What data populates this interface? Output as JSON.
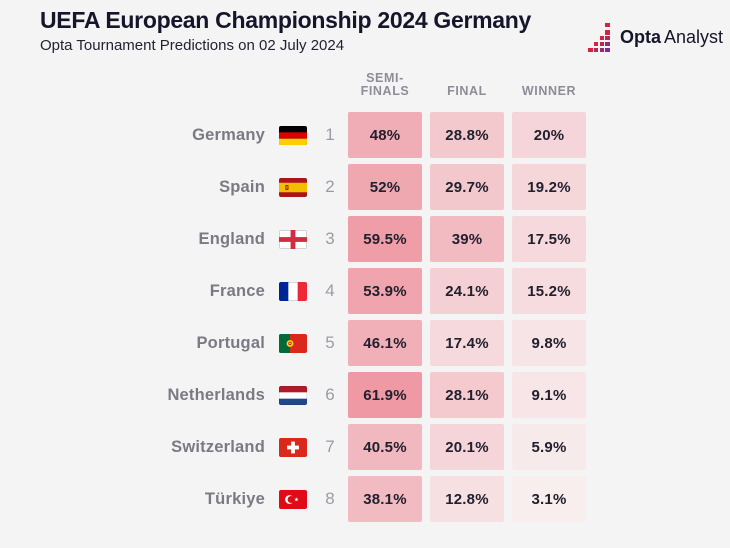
{
  "page": {
    "background": "#f5f4f4"
  },
  "header": {
    "title": "UEFA European Championship 2024 Germany",
    "subtitle": "Opta Tournament Predictions on 02 July 2024"
  },
  "logo": {
    "icon": "opta-bars-icon",
    "text_bold": "Opta",
    "text_regular": "Analyst",
    "gradient_red": "#d6213f",
    "gradient_purple": "#7b2d8b",
    "text_color": "#16162a"
  },
  "table": {
    "columns": [
      {
        "id": "semi_finals",
        "label": "SEMI-FINALS",
        "label_lines": [
          "SEMI-",
          "FINALS"
        ]
      },
      {
        "id": "final",
        "label": "FINAL",
        "label_lines": [
          "FINAL"
        ]
      },
      {
        "id": "winner",
        "label": "WINNER",
        "label_lines": [
          "WINNER"
        ]
      }
    ],
    "color_scale": {
      "min_color": "#f8f2f2",
      "max_color": "#ee95a0",
      "domain": [
        0,
        65
      ]
    },
    "rows": [
      {
        "team": "Germany",
        "flag": "germany",
        "rank": "1",
        "cells": [
          {
            "text": "48%",
            "value": 48
          },
          {
            "text": "28.8%",
            "value": 28.8
          },
          {
            "text": "20%",
            "value": 20
          }
        ]
      },
      {
        "team": "Spain",
        "flag": "spain",
        "rank": "2",
        "cells": [
          {
            "text": "52%",
            "value": 52
          },
          {
            "text": "29.7%",
            "value": 29.7
          },
          {
            "text": "19.2%",
            "value": 19.2
          }
        ]
      },
      {
        "team": "England",
        "flag": "england",
        "rank": "3",
        "cells": [
          {
            "text": "59.5%",
            "value": 59.5
          },
          {
            "text": "39%",
            "value": 39
          },
          {
            "text": "17.5%",
            "value": 17.5
          }
        ]
      },
      {
        "team": "France",
        "flag": "france",
        "rank": "4",
        "cells": [
          {
            "text": "53.9%",
            "value": 53.9
          },
          {
            "text": "24.1%",
            "value": 24.1
          },
          {
            "text": "15.2%",
            "value": 15.2
          }
        ]
      },
      {
        "team": "Portugal",
        "flag": "portugal",
        "rank": "5",
        "cells": [
          {
            "text": "46.1%",
            "value": 46.1
          },
          {
            "text": "17.4%",
            "value": 17.4
          },
          {
            "text": "9.8%",
            "value": 9.8
          }
        ]
      },
      {
        "team": "Netherlands",
        "flag": "netherlands",
        "rank": "6",
        "cells": [
          {
            "text": "61.9%",
            "value": 61.9
          },
          {
            "text": "28.1%",
            "value": 28.1
          },
          {
            "text": "9.1%",
            "value": 9.1
          }
        ]
      },
      {
        "team": "Switzerland",
        "flag": "switzerland",
        "rank": "7",
        "cells": [
          {
            "text": "40.5%",
            "value": 40.5
          },
          {
            "text": "20.1%",
            "value": 20.1
          },
          {
            "text": "5.9%",
            "value": 5.9
          }
        ]
      },
      {
        "team": "Türkiye",
        "flag": "turkiye",
        "rank": "8",
        "cells": [
          {
            "text": "38.1%",
            "value": 38.1
          },
          {
            "text": "12.8%",
            "value": 12.8
          },
          {
            "text": "3.1%",
            "value": 3.1
          }
        ]
      }
    ]
  },
  "colors": {
    "background": "#f5f4f4",
    "title_text": "#16162a",
    "team_text": "#7a7a83",
    "rank_text": "#9b9ba3",
    "header_text": "#8d8d97",
    "cell_text": "#20202e"
  },
  "chart_data": {
    "type": "heatmap",
    "title": "UEFA European Championship 2024 Germany",
    "subtitle": "Opta Tournament Predictions on 02 July 2024",
    "categories": [
      "Germany",
      "Spain",
      "England",
      "France",
      "Portugal",
      "Netherlands",
      "Switzerland",
      "Türkiye"
    ],
    "ranks": [
      1,
      2,
      3,
      4,
      5,
      6,
      7,
      8
    ],
    "columns": [
      "SEMI-FINALS",
      "FINAL",
      "WINNER"
    ],
    "series": [
      {
        "name": "SEMI-FINALS",
        "values": [
          48,
          52,
          59.5,
          53.9,
          46.1,
          61.9,
          40.5,
          38.1
        ]
      },
      {
        "name": "FINAL",
        "values": [
          28.8,
          29.7,
          39,
          24.1,
          17.4,
          28.1,
          20.1,
          12.8
        ]
      },
      {
        "name": "WINNER",
        "values": [
          20,
          19.2,
          17.5,
          15.2,
          9.8,
          9.1,
          5.9,
          3.1
        ]
      }
    ],
    "value_format": "percent",
    "color_scale": {
      "min_color": "#f8f2f2",
      "max_color": "#ee95a0",
      "domain": [
        0,
        65
      ]
    },
    "legend_position": "none",
    "grid": false
  }
}
